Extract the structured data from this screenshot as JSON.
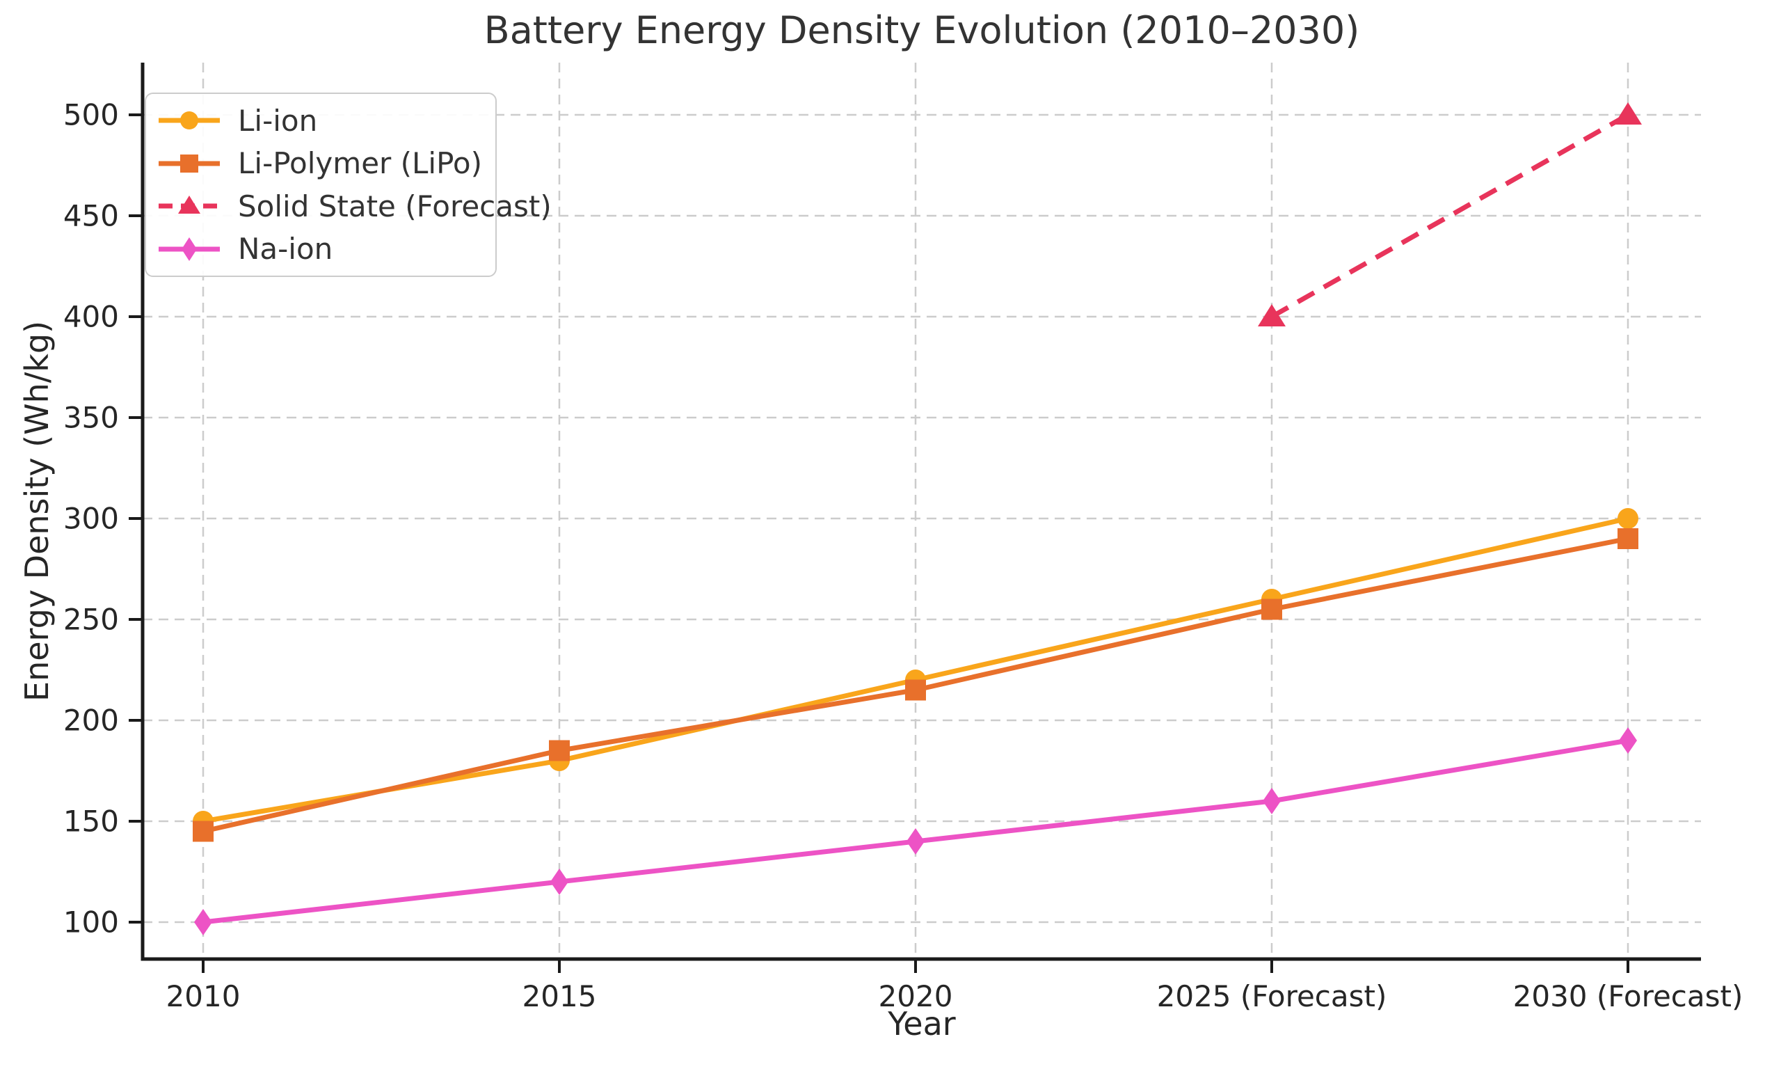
{
  "chart_data": {
    "type": "line",
    "title": "Battery Energy Density Evolution (2010–2030)",
    "xlabel": "Year",
    "ylabel": "Energy Density (Wh/kg)",
    "categories": [
      "2010",
      "2015",
      "2020",
      "2025 (Forecast)",
      "2030 (Forecast)"
    ],
    "series": [
      {
        "name": "Li-ion",
        "values": [
          150,
          180,
          220,
          260,
          300
        ],
        "color": "#F9A51B",
        "marker": "circle",
        "line_style": "solid"
      },
      {
        "name": "Li-Polymer (LiPo)",
        "values": [
          145,
          185,
          215,
          255,
          290
        ],
        "color": "#E8702B",
        "marker": "square",
        "line_style": "solid"
      },
      {
        "name": "Solid State (Forecast)",
        "values": [
          null,
          null,
          null,
          400,
          500
        ],
        "color": "#E8345B",
        "marker": "triangle",
        "line_style": "dashed"
      },
      {
        "name": "Na-ion",
        "values": [
          100,
          120,
          140,
          160,
          190
        ],
        "color": "#ED53C5",
        "marker": "diamond",
        "line_style": "solid"
      }
    ],
    "yticks": [
      100,
      150,
      200,
      250,
      300,
      350,
      400,
      450,
      500
    ],
    "ylim": [
      82,
      526
    ],
    "grid": true,
    "grid_style": "dashed",
    "grid_color": "#cccccc",
    "axis_color": "#1a1a1a",
    "legend_position": "upper-left"
  }
}
